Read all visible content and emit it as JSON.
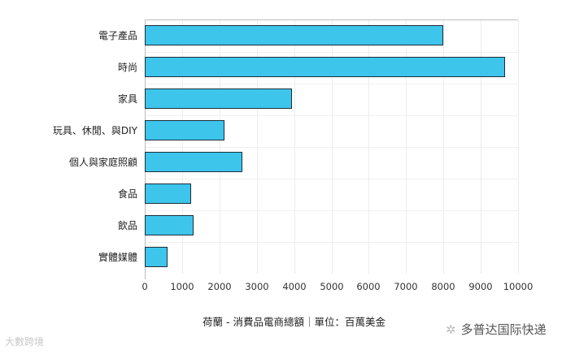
{
  "chart_data": {
    "type": "bar",
    "orientation": "horizontal",
    "title": "荷蘭 - 消費品電商總額｜單位：百萬美金",
    "xlabel": "",
    "ylabel": "",
    "xlim": [
      0,
      10000
    ],
    "x_ticks": [
      "0",
      "1000",
      "2000",
      "3000",
      "4000",
      "5000",
      "6000",
      "7000",
      "8000",
      "9000",
      "10000"
    ],
    "categories": [
      "電子產品",
      "時尚",
      "家具",
      "玩具、休閒、與DIY",
      "個人與家庭照顧",
      "食品",
      "飲品",
      "實體媒體"
    ],
    "values": [
      7990,
      9650,
      3940,
      2140,
      2610,
      1240,
      1310,
      610
    ],
    "bar_color": "#3dc5ec",
    "grid": true,
    "legend": null
  },
  "watermarks": {
    "left": "大數跨境",
    "right": "多普达国际快递",
    "right_icon": "wechat-icon"
  }
}
